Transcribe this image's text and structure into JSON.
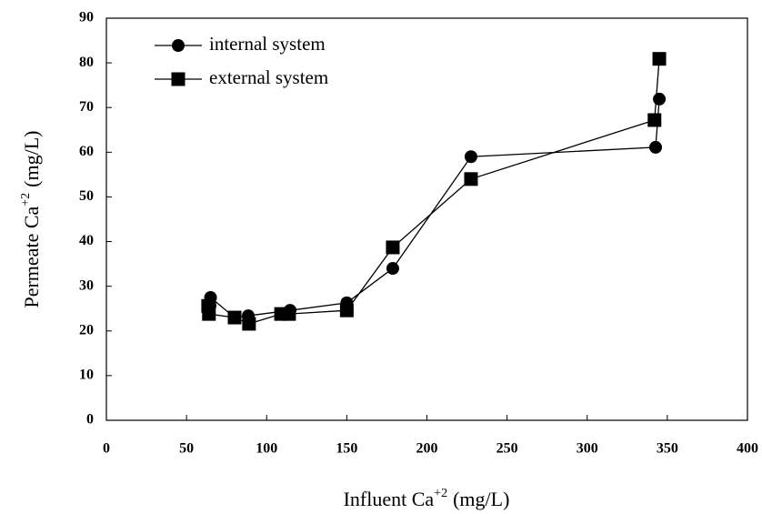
{
  "chart_data": {
    "type": "line",
    "x_label": {
      "text": "Influent Ca",
      "sup": "+2",
      "unit": "(mg/L)"
    },
    "y_label": {
      "text": "Permeate Ca",
      "sup": "+2",
      "unit": "(mg/L)"
    },
    "xlim": [
      0,
      400
    ],
    "xticks": [
      0,
      50,
      100,
      150,
      200,
      250,
      300,
      350,
      400
    ],
    "ylim": [
      0,
      90
    ],
    "yticks": [
      0,
      10,
      20,
      30,
      40,
      50,
      60,
      70,
      80,
      90
    ],
    "grid": false,
    "legend": "upper left",
    "series": [
      {
        "name": "internal system",
        "color": "#000000",
        "marker": "circle",
        "x": [
          64.7,
          65,
          80,
          88.5,
          114.6,
          150,
          178.7,
          227.5,
          342.7,
          345
        ],
        "values": [
          25.7,
          27.5,
          23,
          23.4,
          24.6,
          26.3,
          34,
          59,
          61.1,
          71.9
        ]
      },
      {
        "name": "external system",
        "color": "#000000",
        "marker": "square",
        "x": [
          63.5,
          64,
          80,
          89,
          109,
          114,
          150,
          178.7,
          227.5,
          342,
          345
        ],
        "values": [
          25.6,
          23.8,
          23,
          21.6,
          23.8,
          23.8,
          24.6,
          38.7,
          54,
          67.2,
          80.9
        ]
      }
    ]
  }
}
